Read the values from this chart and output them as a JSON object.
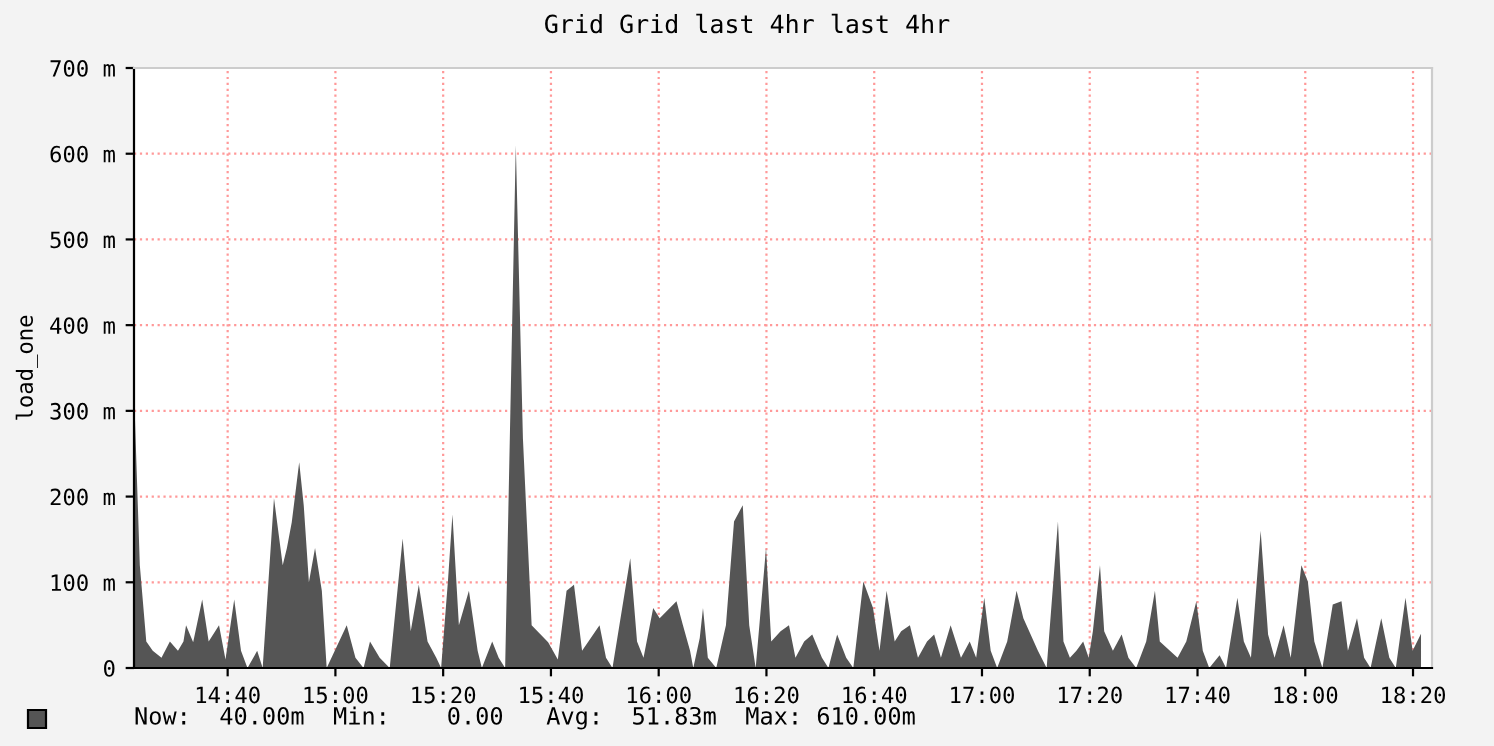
{
  "chart_data": {
    "type": "area",
    "title": "Grid Grid last 4hr last 4hr",
    "ylabel": "load_one",
    "x": [
      14.38,
      14.395,
      14.415,
      14.435,
      14.462,
      14.488,
      14.513,
      14.53,
      14.538,
      14.56,
      14.588,
      14.608,
      14.64,
      14.66,
      14.687,
      14.708,
      14.728,
      14.758,
      14.775,
      14.81,
      14.837,
      14.85,
      14.865,
      14.888,
      14.902,
      14.918,
      14.937,
      14.958,
      14.973,
      15.035,
      15.062,
      15.087,
      15.107,
      15.137,
      15.168,
      15.208,
      15.233,
      15.258,
      15.285,
      15.312,
      15.327,
      15.348,
      15.362,
      15.382,
      15.413,
      15.44,
      15.453,
      15.485,
      15.505,
      15.525,
      15.558,
      15.58,
      15.607,
      15.658,
      15.688,
      15.715,
      15.738,
      15.763,
      15.79,
      15.817,
      15.837,
      15.857,
      15.912,
      15.933,
      15.953,
      15.983,
      16.003,
      16.055,
      16.075,
      16.097,
      16.107,
      16.127,
      16.137,
      16.152,
      16.178,
      16.208,
      16.233,
      16.26,
      16.28,
      16.3,
      16.332,
      16.348,
      16.377,
      16.403,
      16.423,
      16.45,
      16.475,
      16.505,
      16.525,
      16.552,
      16.58,
      16.602,
      16.633,
      16.663,
      16.683,
      16.705,
      16.73,
      16.75,
      16.777,
      16.802,
      16.83,
      16.852,
      16.873,
      16.903,
      16.935,
      16.962,
      16.982,
      17.007,
      17.027,
      17.047,
      17.078,
      17.107,
      17.128,
      17.173,
      17.2,
      17.235,
      17.252,
      17.272,
      17.292,
      17.313,
      17.33,
      17.343,
      17.365,
      17.378,
      17.405,
      17.432,
      17.453,
      17.477,
      17.508,
      17.535,
      17.55,
      17.605,
      17.632,
      17.663,
      17.683,
      17.703,
      17.735,
      17.755,
      17.79,
      17.81,
      17.832,
      17.862,
      17.885,
      17.905,
      17.933,
      17.955,
      17.988,
      18.008,
      18.028,
      18.053,
      18.085,
      18.112,
      18.132,
      18.16,
      18.182,
      18.202,
      18.235,
      18.26,
      18.28,
      18.31,
      18.332,
      18.358
    ],
    "series": [
      {
        "color": "#555555",
        "values": [
          290,
          120,
          31,
          20,
          12,
          31,
          20,
          31,
          50,
          30,
          80,
          31,
          50,
          10,
          80,
          20,
          0,
          20,
          0,
          198,
          120,
          140,
          170,
          240,
          190,
          100,
          140,
          90,
          0,
          50,
          12,
          0,
          31,
          12,
          0,
          151,
          43,
          97,
          31,
          12,
          0,
          101,
          179,
          50,
          90,
          20,
          0,
          31,
          12,
          0,
          610,
          268,
          50,
          30,
          10,
          90,
          97,
          20,
          35,
          50,
          12,
          0,
          128,
          31,
          12,
          70,
          58,
          78,
          50,
          20,
          0,
          35,
          70,
          12,
          0,
          50,
          171,
          190,
          50,
          0,
          140,
          31,
          43,
          50,
          12,
          31,
          39,
          12,
          0,
          39,
          12,
          0,
          101,
          70,
          20,
          90,
          31,
          43,
          50,
          12,
          31,
          39,
          12,
          50,
          12,
          31,
          12,
          82,
          20,
          0,
          31,
          90,
          58,
          20,
          0,
          171,
          31,
          12,
          20,
          31,
          12,
          43,
          120,
          43,
          20,
          39,
          12,
          0,
          31,
          90,
          31,
          12,
          31,
          78,
          20,
          0,
          15,
          0,
          82,
          31,
          12,
          160,
          39,
          12,
          50,
          12,
          120,
          101,
          31,
          0,
          74,
          78,
          20,
          58,
          12,
          0,
          58,
          12,
          0,
          82,
          20,
          40
        ]
      }
    ],
    "xlim": [
      14.377,
      18.392
    ],
    "xticks": [
      {
        "value": 14.6667,
        "label": "14:40"
      },
      {
        "value": 15.0,
        "label": "15:00"
      },
      {
        "value": 15.3333,
        "label": "15:20"
      },
      {
        "value": 15.6667,
        "label": "15:40"
      },
      {
        "value": 16.0,
        "label": "16:00"
      },
      {
        "value": 16.3333,
        "label": "16:20"
      },
      {
        "value": 16.6667,
        "label": "16:40"
      },
      {
        "value": 17.0,
        "label": "17:00"
      },
      {
        "value": 17.3333,
        "label": "17:20"
      },
      {
        "value": 17.6667,
        "label": "17:40"
      },
      {
        "value": 18.0,
        "label": "18:00"
      },
      {
        "value": 18.3333,
        "label": "18:20"
      }
    ],
    "ylim": [
      0,
      700
    ],
    "yticks": [
      0,
      {
        "value": 100,
        "label": "100 m"
      },
      {
        "value": 200,
        "label": "200 m"
      },
      {
        "value": 300,
        "label": "300 m"
      },
      {
        "value": 400,
        "label": "400 m"
      },
      {
        "value": 500,
        "label": "500 m"
      },
      {
        "value": 600,
        "label": "600 m"
      },
      {
        "value": 700,
        "label": "700 m"
      }
    ],
    "grid": true,
    "annotations": [
      "Now:  40.00m  Min:    0.00   Avg:  51.83m  Max: 610.00m"
    ]
  }
}
